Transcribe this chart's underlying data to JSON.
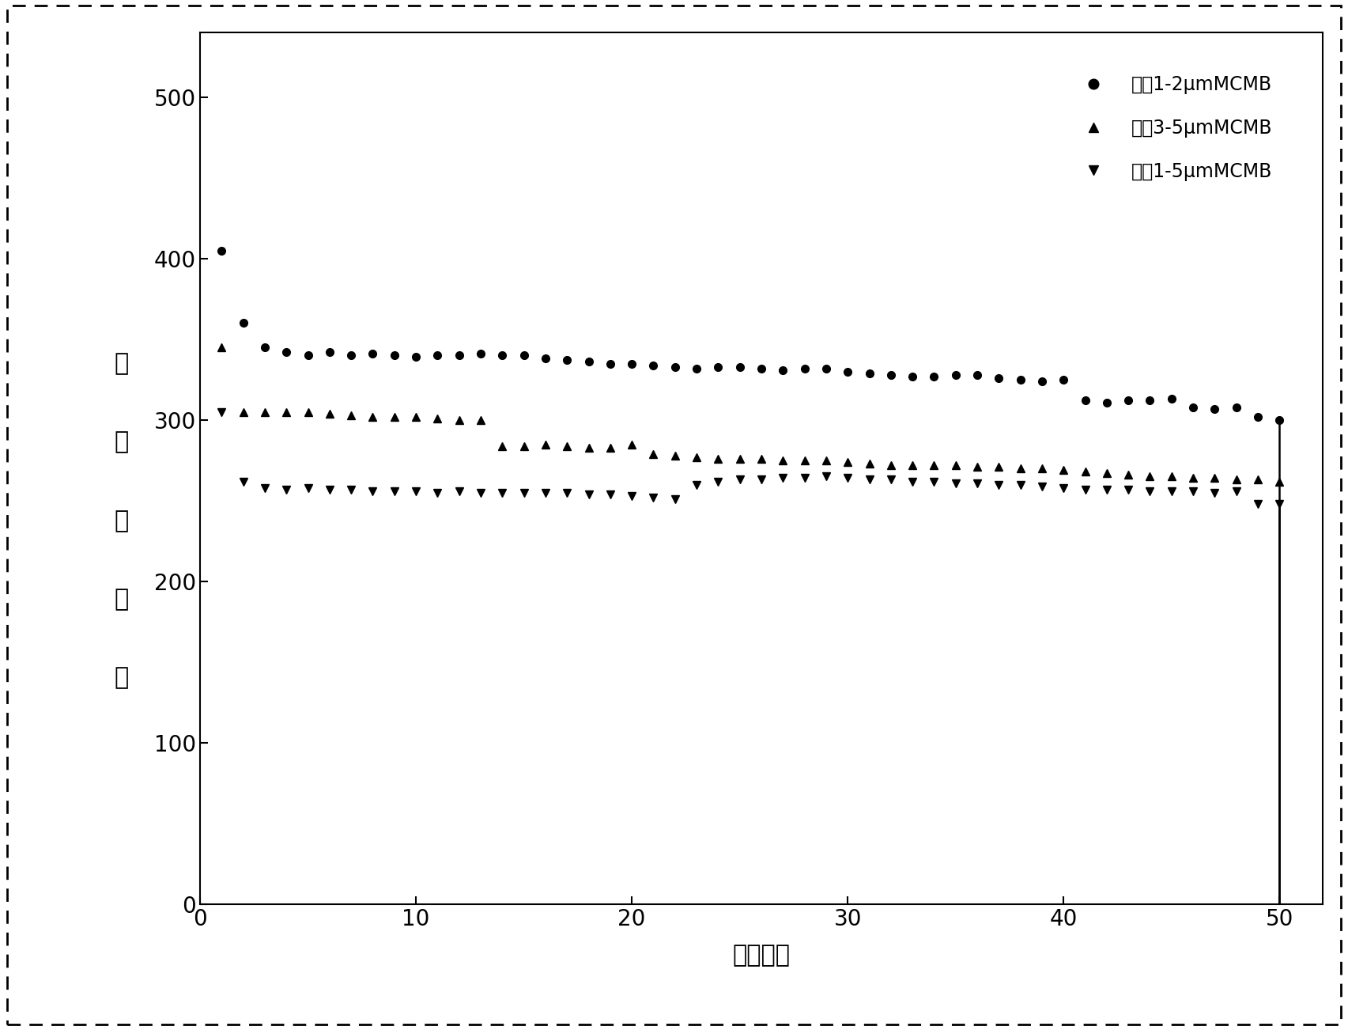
{
  "title": "",
  "xlabel": "循环次数",
  "ylabel_chars": [
    "放",
    "电",
    "比",
    "容",
    "量"
  ],
  "xlim": [
    0,
    52
  ],
  "ylim": [
    0,
    540
  ],
  "yticks": [
    0,
    100,
    200,
    300,
    400,
    500
  ],
  "xticks": [
    0,
    10,
    20,
    30,
    40,
    50
  ],
  "legend_labels": [
    "粒径1-2μmMCMB",
    "粒径3-5μmMCMB",
    "粒径1-5μmMCMB"
  ],
  "series1_x": [
    1,
    2,
    3,
    4,
    5,
    6,
    7,
    8,
    9,
    10,
    11,
    12,
    13,
    14,
    15,
    16,
    17,
    18,
    19,
    20,
    21,
    22,
    23,
    24,
    25,
    26,
    27,
    28,
    29,
    30,
    31,
    32,
    33,
    34,
    35,
    36,
    37,
    38,
    39,
    40,
    41,
    42,
    43,
    44,
    45,
    46,
    47,
    48,
    49,
    50
  ],
  "series1_y": [
    405,
    360,
    345,
    342,
    340,
    342,
    340,
    341,
    340,
    339,
    340,
    340,
    341,
    340,
    340,
    338,
    337,
    336,
    335,
    335,
    334,
    333,
    332,
    333,
    333,
    332,
    331,
    332,
    332,
    330,
    329,
    328,
    327,
    327,
    328,
    328,
    326,
    325,
    324,
    325,
    312,
    311,
    312,
    312,
    313,
    308,
    307,
    308,
    302,
    300
  ],
  "series2_x": [
    1,
    2,
    3,
    4,
    5,
    6,
    7,
    8,
    9,
    10,
    11,
    12,
    13,
    14,
    15,
    16,
    17,
    18,
    19,
    20,
    21,
    22,
    23,
    24,
    25,
    26,
    27,
    28,
    29,
    30,
    31,
    32,
    33,
    34,
    35,
    36,
    37,
    38,
    39,
    40,
    41,
    42,
    43,
    44,
    45,
    46,
    47,
    48,
    49,
    50
  ],
  "series2_y": [
    345,
    305,
    305,
    305,
    305,
    304,
    303,
    302,
    302,
    302,
    301,
    300,
    300,
    284,
    284,
    285,
    284,
    283,
    283,
    285,
    279,
    278,
    277,
    276,
    276,
    276,
    275,
    275,
    275,
    274,
    273,
    272,
    272,
    272,
    272,
    271,
    271,
    270,
    270,
    269,
    268,
    267,
    266,
    265,
    265,
    264,
    264,
    263,
    263,
    262
  ],
  "series3_x": [
    1,
    2,
    3,
    4,
    5,
    6,
    7,
    8,
    9,
    10,
    11,
    12,
    13,
    14,
    15,
    16,
    17,
    18,
    19,
    20,
    21,
    22,
    23,
    24,
    25,
    26,
    27,
    28,
    29,
    30,
    31,
    32,
    33,
    34,
    35,
    36,
    37,
    38,
    39,
    40,
    41,
    42,
    43,
    44,
    45,
    46,
    47,
    48,
    49,
    50
  ],
  "series3_y": [
    305,
    262,
    258,
    257,
    258,
    257,
    257,
    256,
    256,
    256,
    255,
    256,
    255,
    255,
    255,
    255,
    255,
    254,
    254,
    253,
    252,
    251,
    260,
    262,
    263,
    263,
    264,
    264,
    265,
    264,
    263,
    263,
    262,
    262,
    261,
    261,
    260,
    260,
    259,
    258,
    257,
    257,
    257,
    256,
    256,
    256,
    255,
    256,
    248,
    248
  ],
  "background_color": "#ffffff",
  "marker_color": "#000000",
  "marker_size": 7,
  "linewidth": 1.8
}
